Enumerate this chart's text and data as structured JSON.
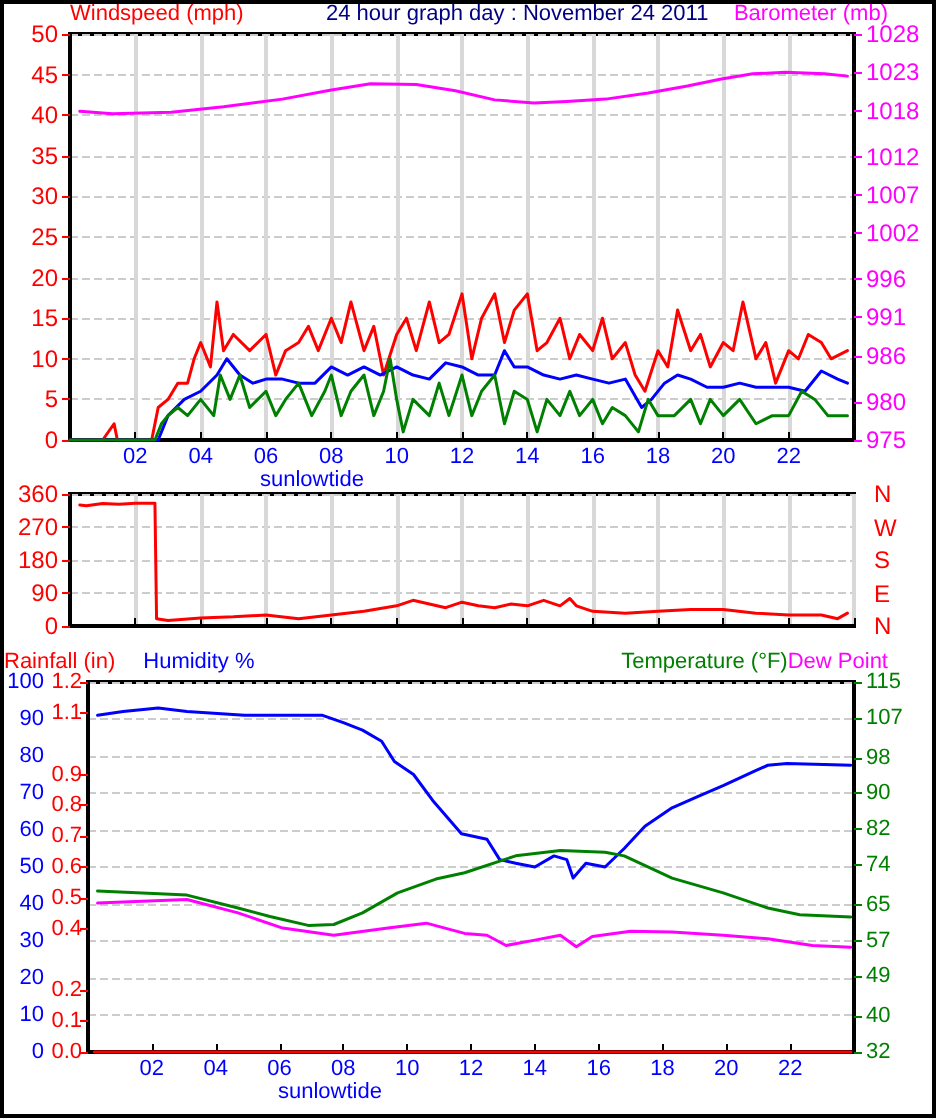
{
  "chart_data": [
    {
      "type": "line",
      "title": "24 hour graph day : November 24 2011",
      "ylabel": "Windspeed (mph)",
      "y2label": "Barometer (mb)",
      "annotations": [
        "sunlowtide"
      ],
      "xlim": [
        0,
        24
      ],
      "xticks": [
        {
          "value": 2,
          "label": "02"
        },
        {
          "value": 4,
          "label": "04"
        },
        {
          "value": 6,
          "label": "06"
        },
        {
          "value": 8,
          "label": "08"
        },
        10,
        12,
        14,
        16,
        18,
        20,
        22,
        {
          "value": 24,
          "label": null
        }
      ],
      "ylim": [
        0,
        50
      ],
      "yticks": [
        0,
        5,
        10,
        15,
        20,
        25,
        30,
        35,
        40,
        45,
        50
      ],
      "y2lim": [
        975,
        1028
      ],
      "y2ticks": [
        975,
        980,
        986,
        991,
        996,
        1002,
        1007,
        1012,
        1018,
        1023,
        1028
      ],
      "grid": true,
      "marker": "none",
      "series": [
        {
          "color": "#ff0000",
          "x": [
            0,
            1.0,
            1.35,
            1.45,
            2.5,
            2.7,
            3.0,
            3.3,
            3.6,
            3.8,
            4.0,
            4.3,
            4.5,
            4.7,
            5.0,
            5.5,
            6.0,
            6.3,
            6.6,
            7.0,
            7.3,
            7.6,
            8.0,
            8.3,
            8.6,
            9.0,
            9.3,
            9.6,
            10.0,
            10.3,
            10.6,
            11.0,
            11.3,
            11.6,
            12.0,
            12.3,
            12.6,
            13.0,
            13.3,
            13.6,
            14.0,
            14.3,
            14.6,
            15.0,
            15.3,
            15.6,
            16.0,
            16.3,
            16.6,
            17.0,
            17.3,
            17.6,
            18.0,
            18.3,
            18.6,
            19.0,
            19.3,
            19.6,
            20.0,
            20.3,
            20.6,
            21.0,
            21.3,
            21.6,
            22.0,
            22.3,
            22.6,
            23.0,
            23.3,
            23.8
          ],
          "values": [
            0,
            0,
            2,
            0,
            0,
            4,
            5,
            7,
            7,
            10,
            12,
            9,
            17,
            11,
            13,
            11,
            13,
            8,
            11,
            12,
            14,
            11,
            15,
            12,
            17,
            11,
            14,
            8,
            13,
            15,
            11,
            17,
            12,
            13,
            18,
            10,
            15,
            18,
            12,
            16,
            18,
            11,
            12,
            15,
            10,
            13,
            11,
            15,
            10,
            12,
            8,
            6,
            11,
            9,
            16,
            11,
            13,
            9,
            12,
            11,
            17,
            10,
            12,
            7,
            11,
            10,
            13,
            12,
            10,
            11
          ]
        },
        {
          "color": "#0000ff",
          "x": [
            0,
            2.7,
            3.0,
            3.5,
            4.0,
            4.5,
            4.8,
            5.2,
            5.6,
            6.0,
            6.5,
            7.0,
            7.5,
            8.0,
            8.5,
            9.0,
            9.5,
            10.0,
            10.5,
            11.0,
            11.5,
            12.0,
            12.5,
            13.0,
            13.3,
            13.6,
            14.0,
            14.5,
            15.0,
            15.5,
            16.0,
            16.5,
            17.0,
            17.5,
            17.8,
            18.2,
            18.6,
            19.0,
            19.5,
            20.0,
            20.5,
            21.0,
            21.5,
            22.0,
            22.5,
            23.0,
            23.5,
            23.8
          ],
          "values": [
            0,
            0,
            3,
            5,
            6,
            8,
            10,
            8,
            7,
            7.5,
            7.5,
            7,
            7,
            9,
            8,
            9,
            8,
            9,
            8,
            7.5,
            9.5,
            9,
            8,
            8,
            11,
            9,
            9,
            8,
            7.5,
            8,
            7.5,
            7,
            7.5,
            4,
            5,
            7,
            8,
            7.5,
            6.5,
            6.5,
            7,
            6.5,
            6.5,
            6.5,
            6,
            8.5,
            7.5,
            7
          ]
        },
        {
          "color": "#008000",
          "x": [
            0,
            2.6,
            2.8,
            3.0,
            3.3,
            3.6,
            4.0,
            4.4,
            4.6,
            4.9,
            5.2,
            5.5,
            6.0,
            6.3,
            6.6,
            7.0,
            7.4,
            7.8,
            8.0,
            8.3,
            8.6,
            9.0,
            9.3,
            9.6,
            9.8,
            10.0,
            10.2,
            10.5,
            11.0,
            11.3,
            11.6,
            12.0,
            12.3,
            12.6,
            13.0,
            13.3,
            13.6,
            14.0,
            14.3,
            14.6,
            15.0,
            15.3,
            15.6,
            16.0,
            16.3,
            16.6,
            17.0,
            17.4,
            17.7,
            18.0,
            18.5,
            19.0,
            19.3,
            19.6,
            20.0,
            20.5,
            21.0,
            21.5,
            22.0,
            22.4,
            22.8,
            23.2,
            23.8
          ],
          "values": [
            0,
            0,
            2,
            3,
            4,
            3,
            5,
            3,
            8,
            5,
            8,
            4,
            6,
            3,
            5,
            7,
            3,
            6,
            8,
            3,
            6,
            8,
            3,
            6,
            10,
            5,
            1,
            5,
            3,
            7,
            3,
            8,
            3,
            6,
            8,
            2,
            6,
            5,
            1,
            5,
            3,
            6,
            3,
            5,
            2,
            4,
            3,
            1,
            5,
            3,
            3,
            5,
            2,
            5,
            3,
            5,
            2,
            3,
            3,
            6,
            5,
            3,
            3
          ]
        },
        {
          "color": "#ff00ff",
          "axis": "y2",
          "x": [
            0.3,
            1.3,
            3.1,
            4.7,
            6.5,
            8.0,
            9.2,
            10.6,
            11.8,
            13.0,
            14.2,
            15.2,
            16.4,
            17.7,
            18.9,
            19.9,
            20.9,
            21.9,
            23.1,
            23.8
          ],
          "values": [
            1017.9,
            1017.6,
            1017.8,
            1018.5,
            1019.5,
            1020.7,
            1021.5,
            1021.4,
            1020.6,
            1019.4,
            1019.0,
            1019.2,
            1019.5,
            1020.3,
            1021.2,
            1022.1,
            1022.8,
            1023.0,
            1022.8,
            1022.5
          ]
        }
      ]
    },
    {
      "type": "line",
      "xlim": [
        0,
        24
      ],
      "xticks": [
        2,
        4,
        6,
        8,
        10,
        12,
        14,
        16,
        18,
        20,
        22,
        24
      ],
      "tick_labels": "y",
      "ylim": [
        0,
        360
      ],
      "yticks": [
        0,
        90,
        180,
        270,
        360
      ],
      "annotations": [
        "N",
        "E",
        "S",
        "W",
        "N"
      ],
      "grid": true,
      "marker": "none",
      "series": [
        {
          "color": "#ff0000",
          "x": [
            0.3,
            0.5,
            1.0,
            1.5,
            2.0,
            2.6,
            2.65,
            3.0,
            4,
            5,
            6,
            7,
            8,
            9,
            10,
            10.5,
            11,
            11.5,
            12,
            12.5,
            13,
            13.5,
            14,
            14.5,
            15,
            15.3,
            15.5,
            16,
            17,
            18,
            19,
            20,
            21,
            22,
            23,
            23.5,
            23.8
          ],
          "values": [
            330,
            328,
            334,
            332,
            335,
            335,
            20,
            15,
            22,
            25,
            30,
            20,
            30,
            40,
            55,
            70,
            60,
            50,
            65,
            55,
            50,
            60,
            55,
            70,
            55,
            75,
            55,
            40,
            35,
            40,
            45,
            45,
            35,
            30,
            30,
            20,
            35
          ]
        }
      ]
    },
    {
      "type": "line",
      "ylabel": "Humidity %",
      "y2label": "Temperature (°F)",
      "y3label": "Rainfall (in)",
      "annotations": [
        "sunlowtide"
      ],
      "xlim": [
        0,
        24
      ],
      "xticks": [
        {
          "value": 2,
          "label": "02"
        },
        {
          "value": 4,
          "label": "04"
        },
        {
          "value": 6,
          "label": "06"
        },
        {
          "value": 8,
          "label": "08"
        },
        10,
        12,
        14,
        16,
        18,
        20,
        22,
        {
          "value": 24,
          "label": null
        }
      ],
      "ylim": [
        0,
        100
      ],
      "yticks": [
        0,
        10,
        20,
        30,
        40,
        50,
        60,
        70,
        80,
        90,
        100
      ],
      "y2lim": [
        32,
        115
      ],
      "y2ticks": [
        32,
        40,
        49,
        57,
        65,
        74,
        82,
        90,
        98,
        107,
        115
      ],
      "y3lim": [
        0,
        1.2
      ],
      "y3ticks": [
        {
          "value": 0,
          "label": "0.0"
        },
        0.1,
        0.2,
        0.4,
        0.5,
        0.6,
        0.7,
        0.8,
        0.9,
        1.1,
        1.2
      ],
      "grid": "y",
      "marker": "none",
      "series": [
        {
          "color": "#0000ff",
          "x": [
            0.3,
            1.1,
            2.2,
            3.1,
            4.9,
            5.7,
            7.35,
            8.0,
            8.6,
            9.2,
            9.6,
            10.2,
            10.8,
            11.2,
            11.7,
            12.5,
            12.9,
            13.4,
            14.0,
            14.6,
            15.0,
            15.2,
            15.6,
            16.2,
            16.8,
            17.45,
            18.3,
            19.1,
            19.9,
            20.9,
            21.3,
            21.9,
            23.9
          ],
          "values": [
            91,
            92,
            93,
            92,
            91,
            91,
            91,
            89,
            87,
            84,
            78.5,
            75,
            68,
            64,
            59,
            57.5,
            52,
            51,
            50,
            53,
            52,
            47,
            51,
            50,
            55,
            61,
            66,
            69,
            72,
            76,
            77.5,
            78,
            77.5
          ]
        },
        {
          "color": "#008000",
          "axis": "y2",
          "x": [
            0.3,
            3.1,
            4.7,
            5.7,
            6.9,
            7.7,
            8.6,
            9.7,
            10.9,
            11.8,
            13.4,
            14.8,
            16.2,
            16.8,
            18.3,
            19.9,
            21.3,
            22.3,
            23.9
          ],
          "values": [
            68.1,
            67.2,
            64.3,
            62.4,
            60.4,
            60.6,
            63.2,
            67.7,
            70.8,
            72.2,
            76.0,
            77.2,
            76.8,
            76.0,
            71.0,
            67.7,
            64.3,
            62.8,
            62.3
          ]
        },
        {
          "name": "Dew Point",
          "color": "#ff00ff",
          "axis": "y2",
          "x": [
            0.3,
            3.1,
            4.7,
            6.1,
            7.7,
            9.4,
            10.6,
            11.8,
            12.5,
            13.1,
            14.0,
            14.8,
            15.3,
            15.8,
            17.0,
            18.3,
            19.9,
            21.3,
            22.7,
            23.9
          ],
          "values": [
            65.4,
            66.2,
            63.2,
            59.8,
            58.2,
            59.8,
            60.9,
            58.6,
            58.2,
            55.9,
            57.1,
            58.2,
            55.6,
            57.9,
            59.1,
            58.9,
            58.2,
            57.4,
            55.9,
            55.5
          ]
        },
        {
          "color": "#ff0000",
          "axis": "y3",
          "x": [
            0.2,
            23.9
          ],
          "values": [
            0,
            0
          ]
        }
      ]
    }
  ]
}
